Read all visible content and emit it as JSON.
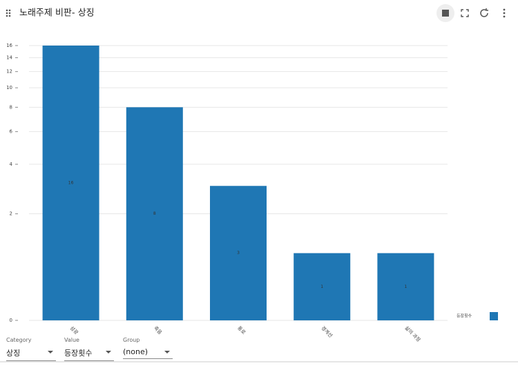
{
  "header": {
    "title": "노래주제 비판- 상징"
  },
  "chart_data": {
    "type": "bar",
    "categories": [
      "섬광",
      "죽음",
      "통로",
      "경계선",
      "삶의 과정"
    ],
    "series": [
      {
        "name": "등장횟수",
        "color": "#1f77b4",
        "values": [
          16,
          8,
          3,
          1,
          1
        ]
      }
    ],
    "ylim": [
      0,
      16
    ],
    "yticks": [
      0,
      2,
      4,
      6,
      8,
      10,
      12,
      14,
      16
    ],
    "yscale": "symlog",
    "grid": true
  },
  "controls": [
    {
      "label": "Category",
      "value": "상징"
    },
    {
      "label": "Value",
      "value": "등장횟수"
    },
    {
      "label": "Group",
      "value": "(none)"
    }
  ]
}
